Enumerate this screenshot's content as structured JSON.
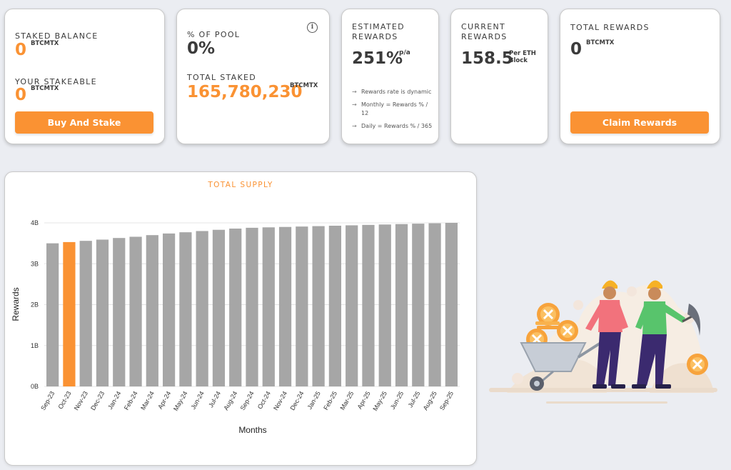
{
  "cards": {
    "staked": {
      "staked_label": "STAKED BALANCE",
      "staked_value": "0",
      "staked_unit": "BTCMTX",
      "stakeable_label": "YOUR STAKEABLE",
      "stakeable_value": "0",
      "stakeable_unit": "BTCMTX",
      "button": "Buy And Stake"
    },
    "pool": {
      "pool_label": "% OF POOL",
      "pool_value": "0%",
      "info_icon": "info-icon",
      "total_label": "TOTAL STAKED",
      "total_value": "165,780,230",
      "total_unit": "BTCMTX"
    },
    "estimated": {
      "label_line1": "ESTIMATED",
      "label_line2": "REWARDS",
      "value": "251%",
      "suffix": "p/a",
      "notes": [
        "Rewards rate is dynamic",
        "Monthly = Rewards % / 12",
        "Daily = Rewards % / 365"
      ]
    },
    "current": {
      "label_line1": "CURRENT",
      "label_line2": "REWARDS",
      "value": "158.5",
      "unit_line1": "Per ETH",
      "unit_line2": "Block"
    },
    "total_rewards": {
      "label": "TOTAL REWARDS",
      "value": "0",
      "unit": "BTCMTX",
      "button": "Claim Rewards"
    }
  },
  "colors": {
    "accent": "#fa9233",
    "bar": "#a6a6a6",
    "highlight_bar": "#fa9233"
  },
  "chart_data": {
    "type": "bar",
    "title": "TOTAL SUPPLY",
    "xlabel": "Months",
    "ylabel": "Rewards",
    "categories": [
      "Sep-23",
      "Oct-23",
      "Nov-23",
      "Dec-23",
      "Jan-24",
      "Feb-24",
      "Mar-24",
      "Apr-24",
      "May-24",
      "Jun-24",
      "Jul-24",
      "Aug-24",
      "Sep-24",
      "Oct-24",
      "Nov-24",
      "Dec-24",
      "Jan-25",
      "Feb-25",
      "Mar-25",
      "Apr-25",
      "May-25",
      "Jun-25",
      "Jul-25",
      "Aug-25",
      "Sep-25"
    ],
    "values": [
      3.5,
      3.53,
      3.56,
      3.59,
      3.63,
      3.66,
      3.7,
      3.74,
      3.77,
      3.8,
      3.83,
      3.86,
      3.88,
      3.89,
      3.9,
      3.91,
      3.92,
      3.93,
      3.94,
      3.95,
      3.96,
      3.97,
      3.98,
      3.99,
      4.0
    ],
    "highlight_index": 1,
    "yticks": [
      0,
      1,
      2,
      3,
      4
    ],
    "ytick_labels": [
      "0B",
      "1B",
      "2B",
      "3B",
      "4B"
    ],
    "ylim": [
      0,
      4
    ],
    "grid": "horizontal"
  }
}
